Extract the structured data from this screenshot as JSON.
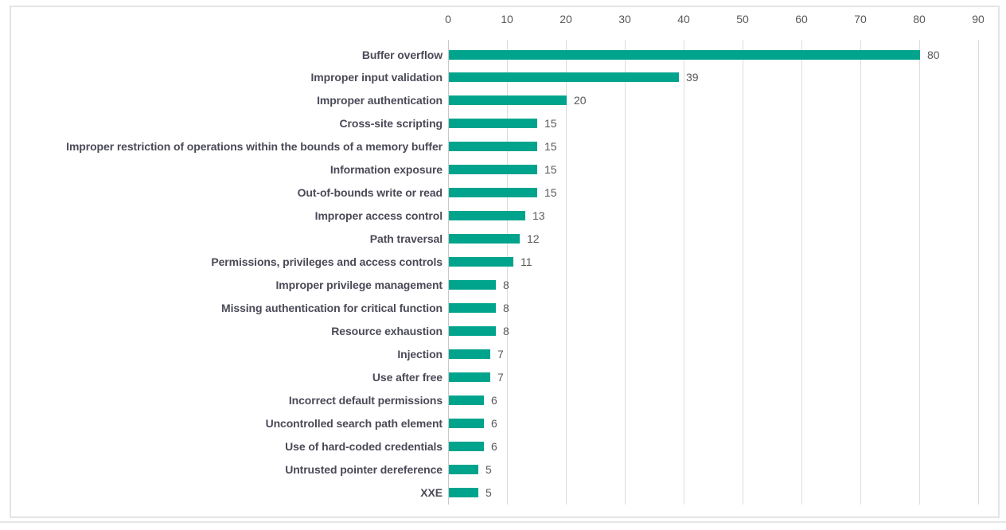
{
  "chart_data": {
    "type": "bar",
    "orientation": "horizontal",
    "title": "",
    "xlabel": "",
    "ylabel": "",
    "categories": [
      "Buffer overflow",
      "Improper input validation",
      "Improper authentication",
      "Cross-site scripting",
      "Improper restriction of operations within the bounds of a memory buffer",
      "Information exposure",
      "Out-of-bounds write or read",
      "Improper access control",
      "Path traversal",
      "Permissions, privileges and access controls",
      "Improper privilege management",
      "Missing authentication for critical function",
      "Resource exhaustion",
      "Injection",
      "Use after free",
      "Incorrect default permissions",
      "Uncontrolled search path element",
      "Use of hard-coded credentials",
      "Untrusted pointer dereference",
      "XXE"
    ],
    "values": [
      80,
      39,
      20,
      15,
      15,
      15,
      15,
      13,
      12,
      11,
      8,
      8,
      8,
      7,
      7,
      6,
      6,
      6,
      5,
      5
    ],
    "x_ticks": [
      0,
      10,
      20,
      30,
      40,
      50,
      60,
      70,
      80,
      90
    ],
    "xlim": [
      0,
      90
    ],
    "grid": "vertical-gridlines-on",
    "legend": "none",
    "data_labels": "shown-right-of-bars",
    "colors": {
      "bar": "#00a48c",
      "gridline": "#dcdcdc",
      "axis_tick_label": "#595959",
      "category_label": "#4a4a58",
      "value_label": "#595959",
      "frame_border": "#e4e4e4",
      "background": "#ffffff"
    }
  }
}
